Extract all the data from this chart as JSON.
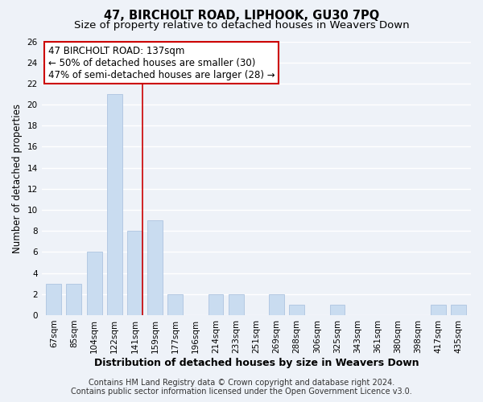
{
  "title": "47, BIRCHOLT ROAD, LIPHOOK, GU30 7PQ",
  "subtitle": "Size of property relative to detached houses in Weavers Down",
  "xlabel": "Distribution of detached houses by size in Weavers Down",
  "ylabel": "Number of detached properties",
  "bar_labels": [
    "67sqm",
    "85sqm",
    "104sqm",
    "122sqm",
    "141sqm",
    "159sqm",
    "177sqm",
    "196sqm",
    "214sqm",
    "233sqm",
    "251sqm",
    "269sqm",
    "288sqm",
    "306sqm",
    "325sqm",
    "343sqm",
    "361sqm",
    "380sqm",
    "398sqm",
    "417sqm",
    "435sqm"
  ],
  "bar_values": [
    3,
    3,
    6,
    21,
    8,
    9,
    2,
    0,
    2,
    2,
    0,
    2,
    1,
    0,
    1,
    0,
    0,
    0,
    0,
    1,
    1
  ],
  "bar_color": "#c9dcf0",
  "bar_edge_color": "#adc4e0",
  "highlight_index": 4,
  "highlight_line_color": "#cc0000",
  "ylim": [
    0,
    26
  ],
  "yticks": [
    0,
    2,
    4,
    6,
    8,
    10,
    12,
    14,
    16,
    18,
    20,
    22,
    24,
    26
  ],
  "annotation_title": "47 BIRCHOLT ROAD: 137sqm",
  "annotation_line1": "← 50% of detached houses are smaller (30)",
  "annotation_line2": "47% of semi-detached houses are larger (28) →",
  "annotation_box_color": "#ffffff",
  "annotation_box_edge": "#cc0000",
  "footer1": "Contains HM Land Registry data © Crown copyright and database right 2024.",
  "footer2": "Contains public sector information licensed under the Open Government Licence v3.0.",
  "background_color": "#eef2f8",
  "grid_color": "#ffffff",
  "title_fontsize": 10.5,
  "subtitle_fontsize": 9.5,
  "xlabel_fontsize": 9,
  "ylabel_fontsize": 8.5,
  "tick_fontsize": 7.5,
  "footer_fontsize": 7.0,
  "annotation_fontsize": 8.5
}
